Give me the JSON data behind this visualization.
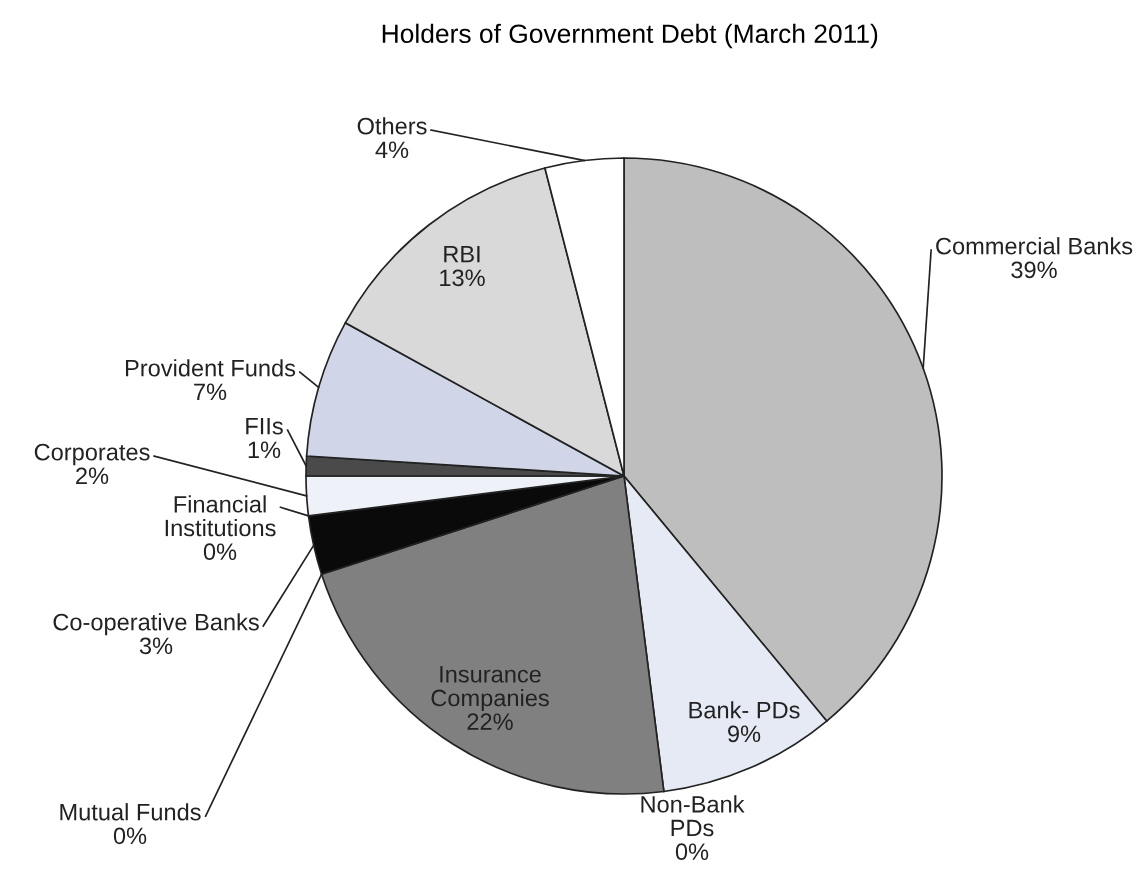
{
  "chart_data": {
    "type": "pie",
    "title": "Holders of Government Debt (March 2011)",
    "categories": [
      "Commercial Banks",
      "Bank- PDs",
      "Non-Bank\nPDs",
      "Insurance\nCompanies",
      "Mutual Funds",
      "Co-operative Banks",
      "Financial\nInstitutions",
      "Corporates",
      "FIIs",
      "Provident Funds",
      "RBI",
      "Others"
    ],
    "values": [
      39,
      9,
      0,
      22,
      0,
      3,
      0,
      2,
      1,
      7,
      13,
      4
    ],
    "colors": [
      "#bebebe",
      "#e6eaf4",
      "#000000",
      "#808080",
      "#c8d0e0",
      "#0a0a0a",
      "#1f3f8f",
      "#eef2f8",
      "#4a4a4a",
      "#d0d6e8",
      "#d9d9d9",
      "#ffffff"
    ],
    "value_labels": [
      "39%",
      "9%",
      "0%",
      "22%",
      "0%",
      "3%",
      "0%",
      "2%",
      "1%",
      "7%",
      "13%",
      "4%"
    ]
  }
}
